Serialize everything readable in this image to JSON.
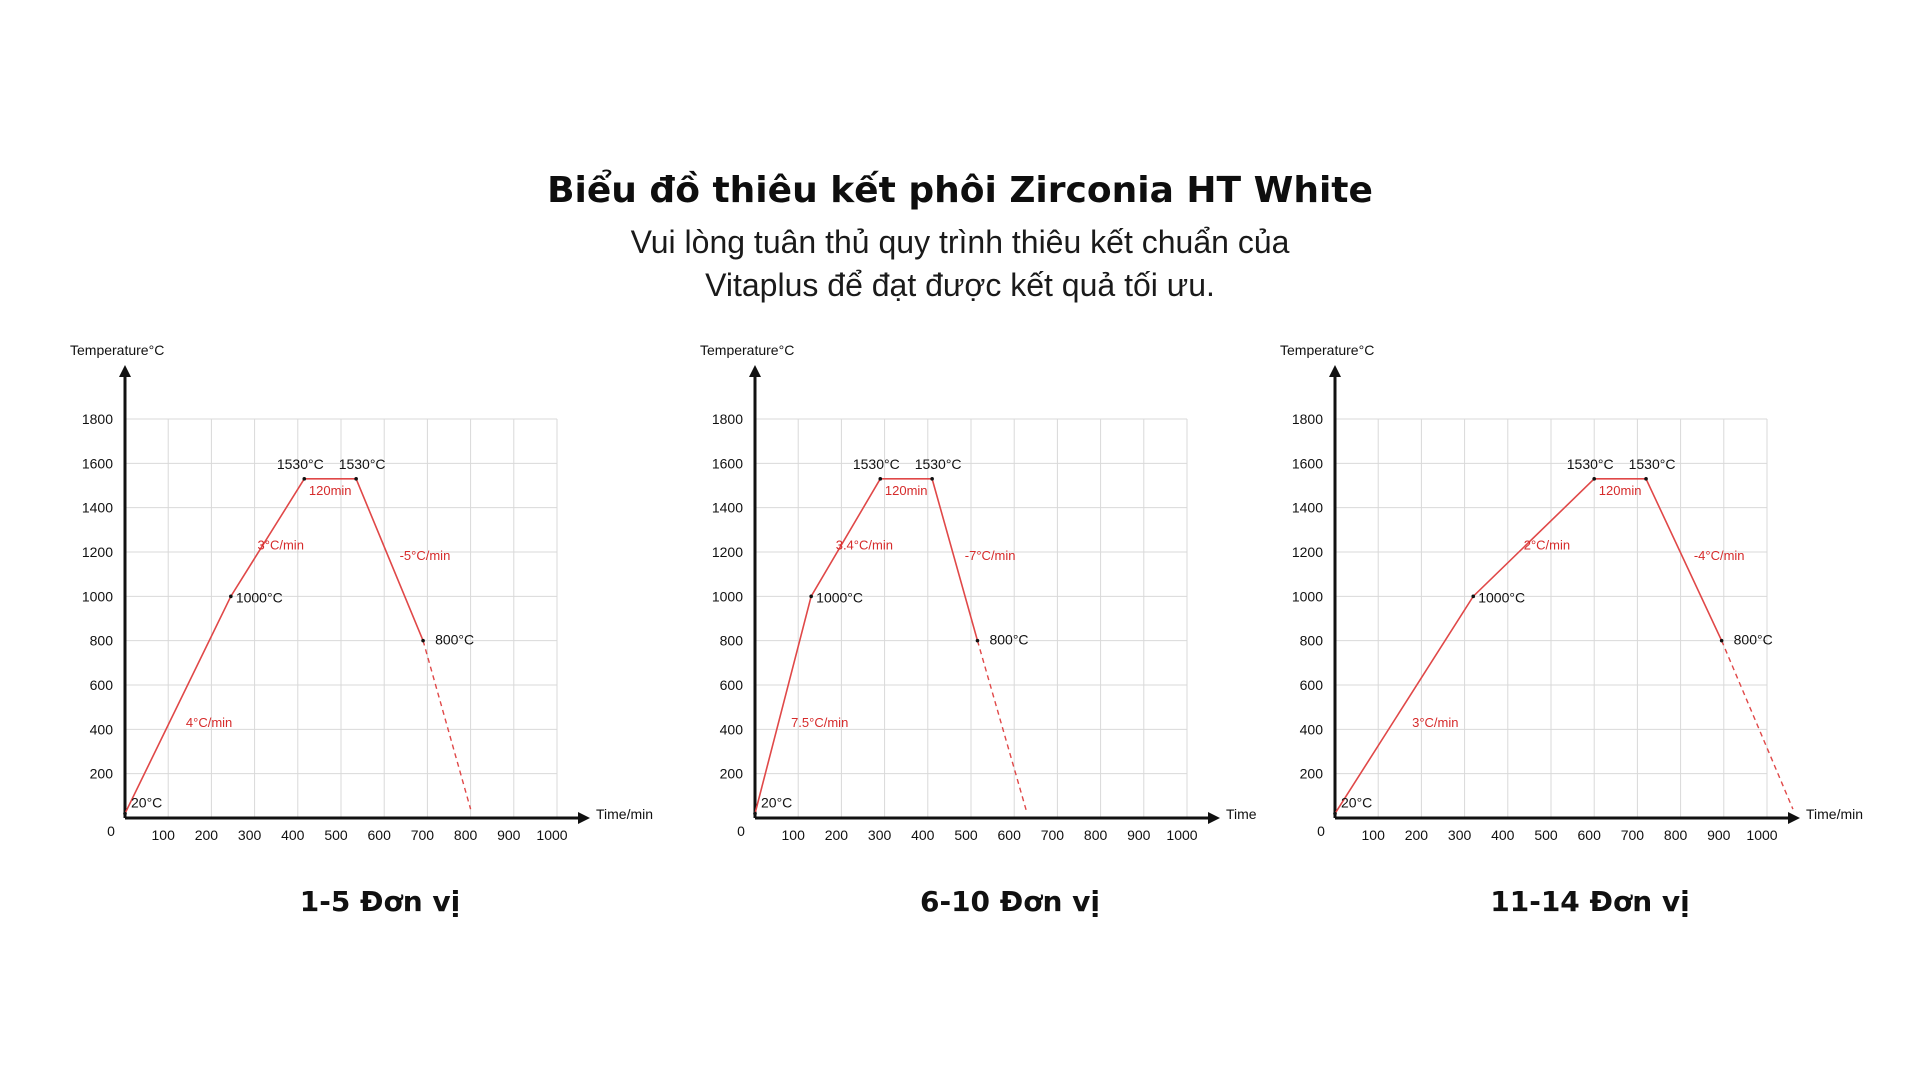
{
  "header": {
    "title": "Biểu đồ thiêu kết phôi Zirconia HT White",
    "subtitle_line1": "Vui lòng tuân thủ quy trình thiêu kết chuẩn của",
    "subtitle_line2": "Vitaplus để đạt được kết quả tối ưu."
  },
  "colors": {
    "line": "#e04848",
    "label": "#d62b2b",
    "axis": "#111111",
    "grid": "#d9d9d9"
  },
  "chart_data": [
    {
      "type": "line",
      "caption": "1-5 Đơn vị",
      "ylabel": "Temperature°C",
      "xlabel": "Time/min",
      "xlim": [
        0,
        1000
      ],
      "ylim": [
        0,
        1800
      ],
      "x_ticks": [
        "100",
        "200",
        "300",
        "400",
        "500",
        "600",
        "700",
        "800",
        "900",
        "1000"
      ],
      "y_ticks": [
        "200",
        "400",
        "600",
        "800",
        "1000",
        "1200",
        "1400",
        "1600",
        "1800"
      ],
      "origin_label": "0",
      "grid": true,
      "points": [
        {
          "x": 0,
          "y": 20,
          "label": "20°C"
        },
        {
          "x": 245,
          "y": 1000,
          "label": "1000°C"
        },
        {
          "x": 415,
          "y": 1530,
          "label": "1530°C"
        },
        {
          "x": 535,
          "y": 1530,
          "label": "1530°C"
        },
        {
          "x": 690,
          "y": 800,
          "label": "800°C"
        }
      ],
      "cooling_dashed": {
        "x": [
          690,
          800
        ],
        "y": [
          800,
          40
        ]
      },
      "rate_labels": [
        "4°C/min",
        "3°C/min",
        "120min",
        "-5°C/min"
      ]
    },
    {
      "type": "line",
      "caption": "6-10 Đơn vị",
      "ylabel": "Temperature°C",
      "xlabel": "Time",
      "xlim": [
        0,
        1000
      ],
      "ylim": [
        0,
        1800
      ],
      "x_ticks": [
        "100",
        "200",
        "300",
        "400",
        "500",
        "600",
        "700",
        "800",
        "900",
        "1000"
      ],
      "y_ticks": [
        "200",
        "400",
        "600",
        "800",
        "1000",
        "1200",
        "1400",
        "1600",
        "1800"
      ],
      "origin_label": "0",
      "grid": true,
      "points": [
        {
          "x": 0,
          "y": 20,
          "label": "20°C"
        },
        {
          "x": 130,
          "y": 1000,
          "label": "1000°C"
        },
        {
          "x": 290,
          "y": 1530,
          "label": "1530°C"
        },
        {
          "x": 410,
          "y": 1530,
          "label": "1530°C"
        },
        {
          "x": 515,
          "y": 800,
          "label": "800°C"
        }
      ],
      "cooling_dashed": {
        "x": [
          515,
          630
        ],
        "y": [
          800,
          20
        ]
      },
      "rate_labels": [
        "7.5°C/min",
        "3.4°C/min",
        "120min",
        "-7°C/min"
      ]
    },
    {
      "type": "line",
      "caption": "11-14 Đơn vị",
      "ylabel": "Temperature°C",
      "xlabel": "Time/min",
      "xlim": [
        0,
        1000
      ],
      "ylim": [
        0,
        1800
      ],
      "x_ticks": [
        "100",
        "200",
        "300",
        "400",
        "500",
        "600",
        "700",
        "800",
        "900",
        "1000"
      ],
      "y_ticks": [
        "200",
        "400",
        "600",
        "800",
        "1000",
        "1200",
        "1400",
        "1600",
        "1800"
      ],
      "origin_label": "0",
      "grid": true,
      "points": [
        {
          "x": 0,
          "y": 20,
          "label": "20°C"
        },
        {
          "x": 320,
          "y": 1000,
          "label": "1000°C"
        },
        {
          "x": 600,
          "y": 1530,
          "label": "1530°C"
        },
        {
          "x": 720,
          "y": 1530,
          "label": "1530°C"
        },
        {
          "x": 895,
          "y": 800,
          "label": "800°C"
        }
      ],
      "cooling_dashed": {
        "x": [
          895,
          1060
        ],
        "y": [
          800,
          40
        ]
      },
      "rate_labels": [
        "3°C/min",
        "2°C/min",
        "120min",
        "-4°C/min"
      ]
    }
  ]
}
